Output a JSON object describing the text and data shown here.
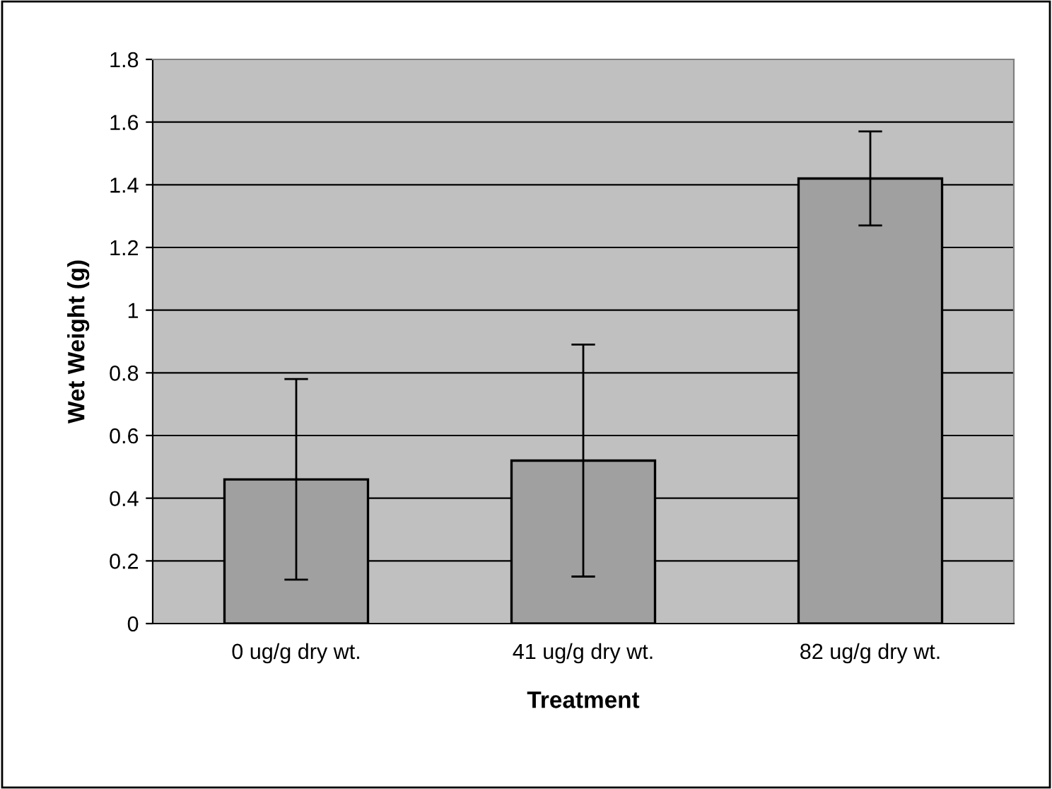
{
  "chart_data": {
    "type": "bar",
    "xlabel": "Treatment",
    "ylabel": "Wet Weight (g)",
    "categories": [
      "0 ug/g dry wt.",
      "41 ug/g dry wt.",
      "82 ug/g dry wt."
    ],
    "values": [
      0.46,
      0.52,
      1.42
    ],
    "errors": [
      0.32,
      0.37,
      0.15
    ],
    "color": "#a0a0a0",
    "ylim": [
      0,
      1.8
    ],
    "yticks": [
      0,
      0.2,
      0.4,
      0.6,
      0.8,
      1,
      1.2,
      1.4,
      1.6,
      1.8
    ],
    "grid": "y"
  }
}
